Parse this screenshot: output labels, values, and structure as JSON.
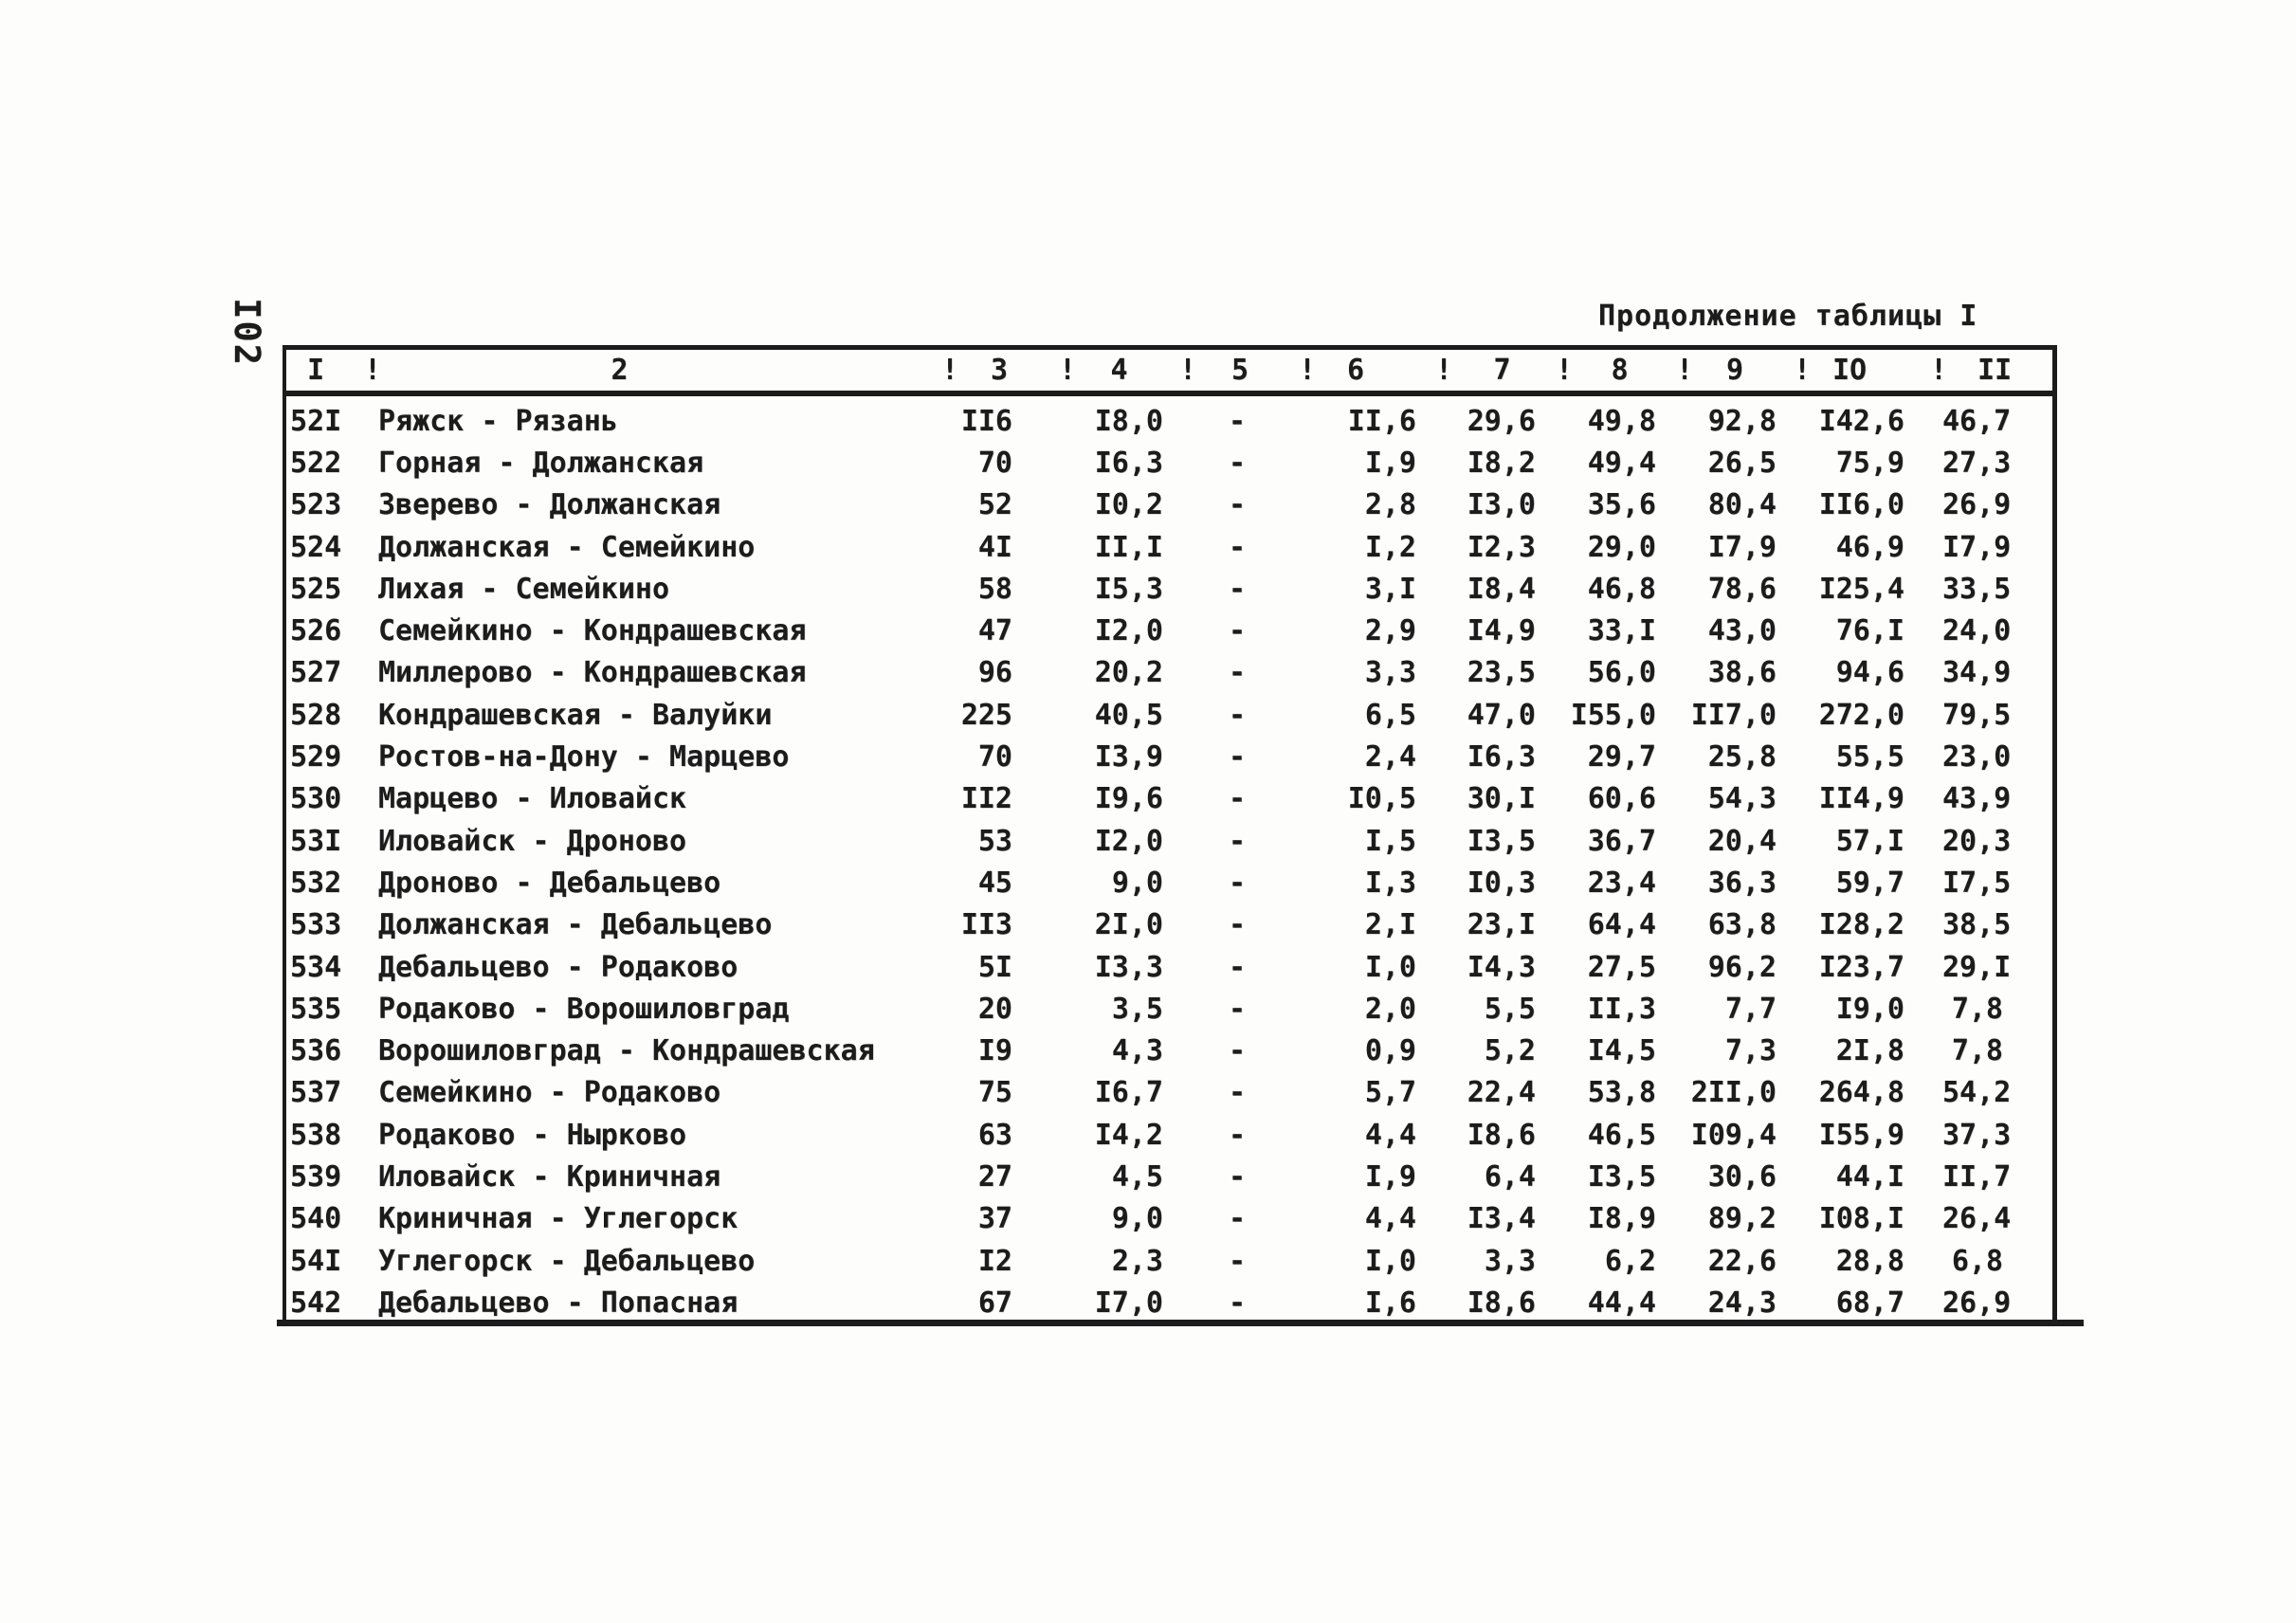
{
  "page": {
    "rotated_page_number": "I02",
    "title": "Продолжение таблицы I"
  },
  "table": {
    "header_separator": "!",
    "columns": [
      "I",
      "2",
      "3",
      "4",
      "5",
      "6",
      "7",
      "8",
      "9",
      "IO",
      "II"
    ],
    "rows": [
      [
        "52I",
        "Ряжск - Рязань",
        "II6",
        "I8,0",
        "-",
        "II,6",
        "29,6",
        "49,8",
        "92,8",
        "I42,6",
        "46,7"
      ],
      [
        "522",
        "Горная - Должанская",
        "70",
        "I6,3",
        "-",
        "I,9",
        "I8,2",
        "49,4",
        "26,5",
        "75,9",
        "27,3"
      ],
      [
        "523",
        "Зверево - Должанская",
        "52",
        "I0,2",
        "-",
        "2,8",
        "I3,0",
        "35,6",
        "80,4",
        "II6,0",
        "26,9"
      ],
      [
        "524",
        "Должанская - Семейкино",
        "4I",
        "II,I",
        "-",
        "I,2",
        "I2,3",
        "29,0",
        "I7,9",
        "46,9",
        "I7,9"
      ],
      [
        "525",
        "Лихая - Семейкино",
        "58",
        "I5,3",
        "-",
        "3,I",
        "I8,4",
        "46,8",
        "78,6",
        "I25,4",
        "33,5"
      ],
      [
        "526",
        "Семейкино - Кондрашевская",
        "47",
        "I2,0",
        "-",
        "2,9",
        "I4,9",
        "33,I",
        "43,0",
        "76,I",
        "24,0"
      ],
      [
        "527",
        "Миллерово - Кондрашевская",
        "96",
        "20,2",
        "-",
        "3,3",
        "23,5",
        "56,0",
        "38,6",
        "94,6",
        "34,9"
      ],
      [
        "528",
        "Кондрашевская - Валуйки",
        "225",
        "40,5",
        "-",
        "6,5",
        "47,0",
        "I55,0",
        "II7,0",
        "272,0",
        "79,5"
      ],
      [
        "529",
        "Ростов-на-Дону - Марцево",
        "70",
        "I3,9",
        "-",
        "2,4",
        "I6,3",
        "29,7",
        "25,8",
        "55,5",
        "23,0"
      ],
      [
        "530",
        "Марцево - Иловайск",
        "II2",
        "I9,6",
        "-",
        "I0,5",
        "30,I",
        "60,6",
        "54,3",
        "II4,9",
        "43,9"
      ],
      [
        "53I",
        "Иловайск - Дроново",
        "53",
        "I2,0",
        "-",
        "I,5",
        "I3,5",
        "36,7",
        "20,4",
        "57,I",
        "20,3"
      ],
      [
        "532",
        "Дроново - Дебальцево",
        "45",
        "9,0",
        "-",
        "I,3",
        "I0,3",
        "23,4",
        "36,3",
        "59,7",
        "I7,5"
      ],
      [
        "533",
        "Должанская - Дебальцево",
        "II3",
        "2I,0",
        "-",
        "2,I",
        "23,I",
        "64,4",
        "63,8",
        "I28,2",
        "38,5"
      ],
      [
        "534",
        "Дебальцево - Родаково",
        "5I",
        "I3,3",
        "-",
        "I,0",
        "I4,3",
        "27,5",
        "96,2",
        "I23,7",
        "29,I"
      ],
      [
        "535",
        "Родаково - Ворошиловград",
        "20",
        "3,5",
        "-",
        "2,0",
        "5,5",
        "II,3",
        "7,7",
        "I9,0",
        "7,8"
      ],
      [
        "536",
        "Ворошиловград - Кондрашевская",
        "I9",
        "4,3",
        "-",
        "0,9",
        "5,2",
        "I4,5",
        "7,3",
        "2I,8",
        "7,8"
      ],
      [
        "537",
        "Семейкино - Родаково",
        "75",
        "I6,7",
        "-",
        "5,7",
        "22,4",
        "53,8",
        "2II,0",
        "264,8",
        "54,2"
      ],
      [
        "538",
        "Родаково - Нырково",
        "63",
        "I4,2",
        "-",
        "4,4",
        "I8,6",
        "46,5",
        "I09,4",
        "I55,9",
        "37,3"
      ],
      [
        "539",
        "Иловайск - Криничная",
        "27",
        "4,5",
        "-",
        "I,9",
        "6,4",
        "I3,5",
        "30,6",
        "44,I",
        "II,7"
      ],
      [
        "540",
        "Криничная - Углегорск",
        "37",
        "9,0",
        "-",
        "4,4",
        "I3,4",
        "I8,9",
        "89,2",
        "I08,I",
        "26,4"
      ],
      [
        "54I",
        "Углегорск - Дебальцево",
        "I2",
        "2,3",
        "-",
        "I,0",
        "3,3",
        "6,2",
        "22,6",
        "28,8",
        "6,8"
      ],
      [
        "542",
        "Дебальцево - Попасная",
        "67",
        "I7,0",
        "-",
        "I,6",
        "I8,6",
        "44,4",
        "24,3",
        "68,7",
        "26,9"
      ]
    ]
  }
}
